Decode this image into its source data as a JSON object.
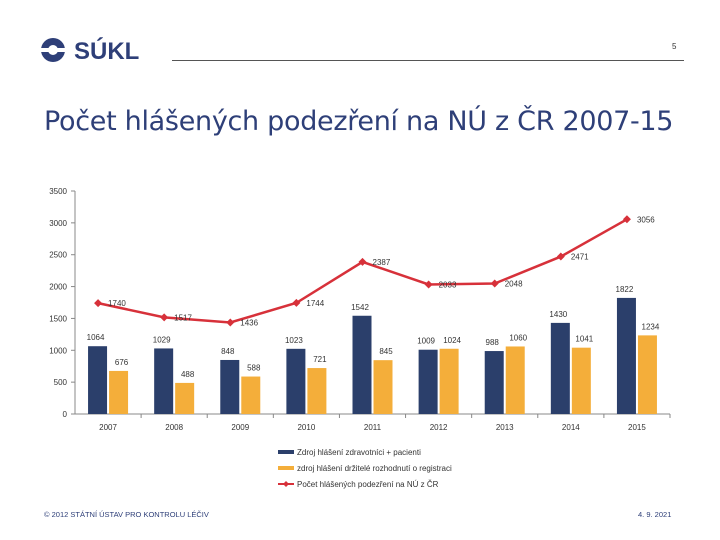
{
  "logo": {
    "text": "SÚKL"
  },
  "page_number": "5",
  "title": "Počet hlášených podezření na NÚ z ČR 2007-15",
  "colors": {
    "series1": "#2b3f6b",
    "series2": "#f4ae3a",
    "line": "#d7313a",
    "title": "#2e3f78"
  },
  "chart_data": {
    "type": "bar",
    "categories": [
      "2007",
      "2008",
      "2009",
      "2010",
      "2011",
      "2012",
      "2013",
      "2014",
      "2015"
    ],
    "series": [
      {
        "name": "Zdroj hlášení zdravotníci + pacienti",
        "kind": "bar",
        "values": [
          1064,
          1029,
          848,
          1023,
          1542,
          1009,
          988,
          1430,
          1822
        ]
      },
      {
        "name": "zdroj hlášení držitelé rozhodnutí o registraci",
        "kind": "bar",
        "values": [
          676,
          488,
          588,
          721,
          845,
          1024,
          1060,
          1041,
          1234
        ]
      },
      {
        "name": "Počet hlášených podezření na NÚ z ČR",
        "kind": "line",
        "values": [
          1740,
          1517,
          1436,
          1744,
          2387,
          2033,
          2048,
          2471,
          3056
        ]
      }
    ],
    "yticks": [
      "0",
      "500",
      "1000",
      "1500",
      "2000",
      "2500",
      "3000",
      "3500"
    ],
    "ylim": [
      0,
      3500
    ],
    "legend_position": "bottom",
    "grid": false
  },
  "footer": {
    "left": "© 2012 STÁTNÍ ÚSTAV PRO KONTROLU LÉČIV",
    "right": "4. 9. 2021"
  }
}
